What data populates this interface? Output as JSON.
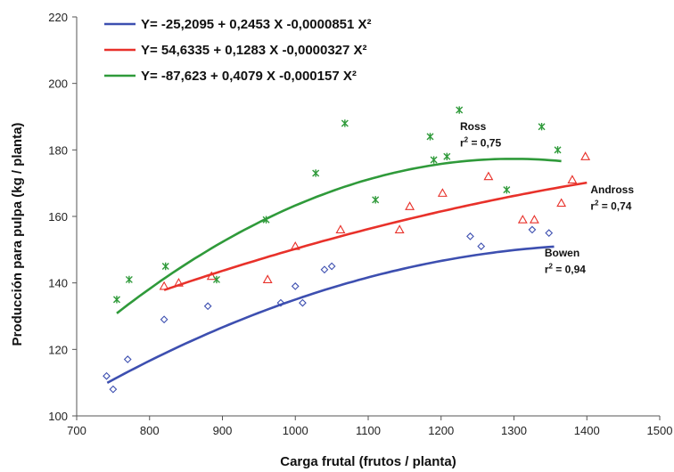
{
  "chart_data": {
    "type": "scatter",
    "xlabel": "Carga frutal (frutos / planta)",
    "ylabel": "Producción para pulpa (kg / planta)",
    "xlim": [
      700,
      1500
    ],
    "ylim": [
      100,
      220
    ],
    "xticks": [
      700,
      800,
      900,
      1000,
      1100,
      1200,
      1300,
      1400,
      1500
    ],
    "yticks": [
      100,
      120,
      140,
      160,
      180,
      200,
      220
    ],
    "grid": false,
    "legend_position": "top-left",
    "legend": [
      {
        "label": "Y= -25,2095 + 0,2453 X -0,0000851 X²",
        "color": "#3d4fb0"
      },
      {
        "label": "Y= 54,6335 + 0,1283 X -0,0000327 X²",
        "color": "#e8312a"
      },
      {
        "label": "Y= -87,623 + 0,4079 X -0,000157 X²",
        "color": "#2f9a3a"
      }
    ],
    "series": [
      {
        "id": "bowen",
        "color": "#3d4fb0",
        "marker": "diamond",
        "curve": {
          "a": -25.2095,
          "b": 0.2453,
          "c": -8.51e-05,
          "xmin": 742,
          "xmax": 1355
        },
        "label_name": "Bowen",
        "label_r2": "0,94",
        "points": [
          [
            741,
            112
          ],
          [
            750,
            108
          ],
          [
            770,
            117
          ],
          [
            820,
            129
          ],
          [
            880,
            133
          ],
          [
            980,
            134
          ],
          [
            1000,
            139
          ],
          [
            1010,
            134
          ],
          [
            1040,
            144
          ],
          [
            1050,
            145
          ],
          [
            1240,
            154
          ],
          [
            1255,
            151
          ],
          [
            1325,
            156
          ],
          [
            1348,
            155
          ]
        ]
      },
      {
        "id": "andross",
        "color": "#e8312a",
        "marker": "triangle",
        "curve": {
          "a": 54.6335,
          "b": 0.1283,
          "c": -3.27e-05,
          "xmin": 820,
          "xmax": 1400
        },
        "label_name": "Andross",
        "label_r2": "0,74",
        "points": [
          [
            820,
            139
          ],
          [
            840,
            140
          ],
          [
            885,
            142
          ],
          [
            962,
            141
          ],
          [
            1000,
            151
          ],
          [
            1062,
            156
          ],
          [
            1143,
            156
          ],
          [
            1157,
            163
          ],
          [
            1202,
            167
          ],
          [
            1265,
            172
          ],
          [
            1312,
            159
          ],
          [
            1328,
            159
          ],
          [
            1365,
            164
          ],
          [
            1380,
            171
          ],
          [
            1398,
            178
          ]
        ]
      },
      {
        "id": "ross",
        "color": "#2f9a3a",
        "marker": "star",
        "curve": {
          "a": -87.623,
          "b": 0.4079,
          "c": -0.000157,
          "xmin": 755,
          "xmax": 1365
        },
        "label_name": "Ross",
        "label_r2": "0,75",
        "points": [
          [
            755,
            135
          ],
          [
            772,
            141
          ],
          [
            822,
            145
          ],
          [
            892,
            141
          ],
          [
            960,
            159
          ],
          [
            1028,
            173
          ],
          [
            1068,
            188
          ],
          [
            1110,
            165
          ],
          [
            1185,
            184
          ],
          [
            1190,
            177
          ],
          [
            1208,
            178
          ],
          [
            1225,
            192
          ],
          [
            1290,
            168
          ],
          [
            1338,
            187
          ],
          [
            1360,
            180
          ]
        ]
      }
    ]
  }
}
